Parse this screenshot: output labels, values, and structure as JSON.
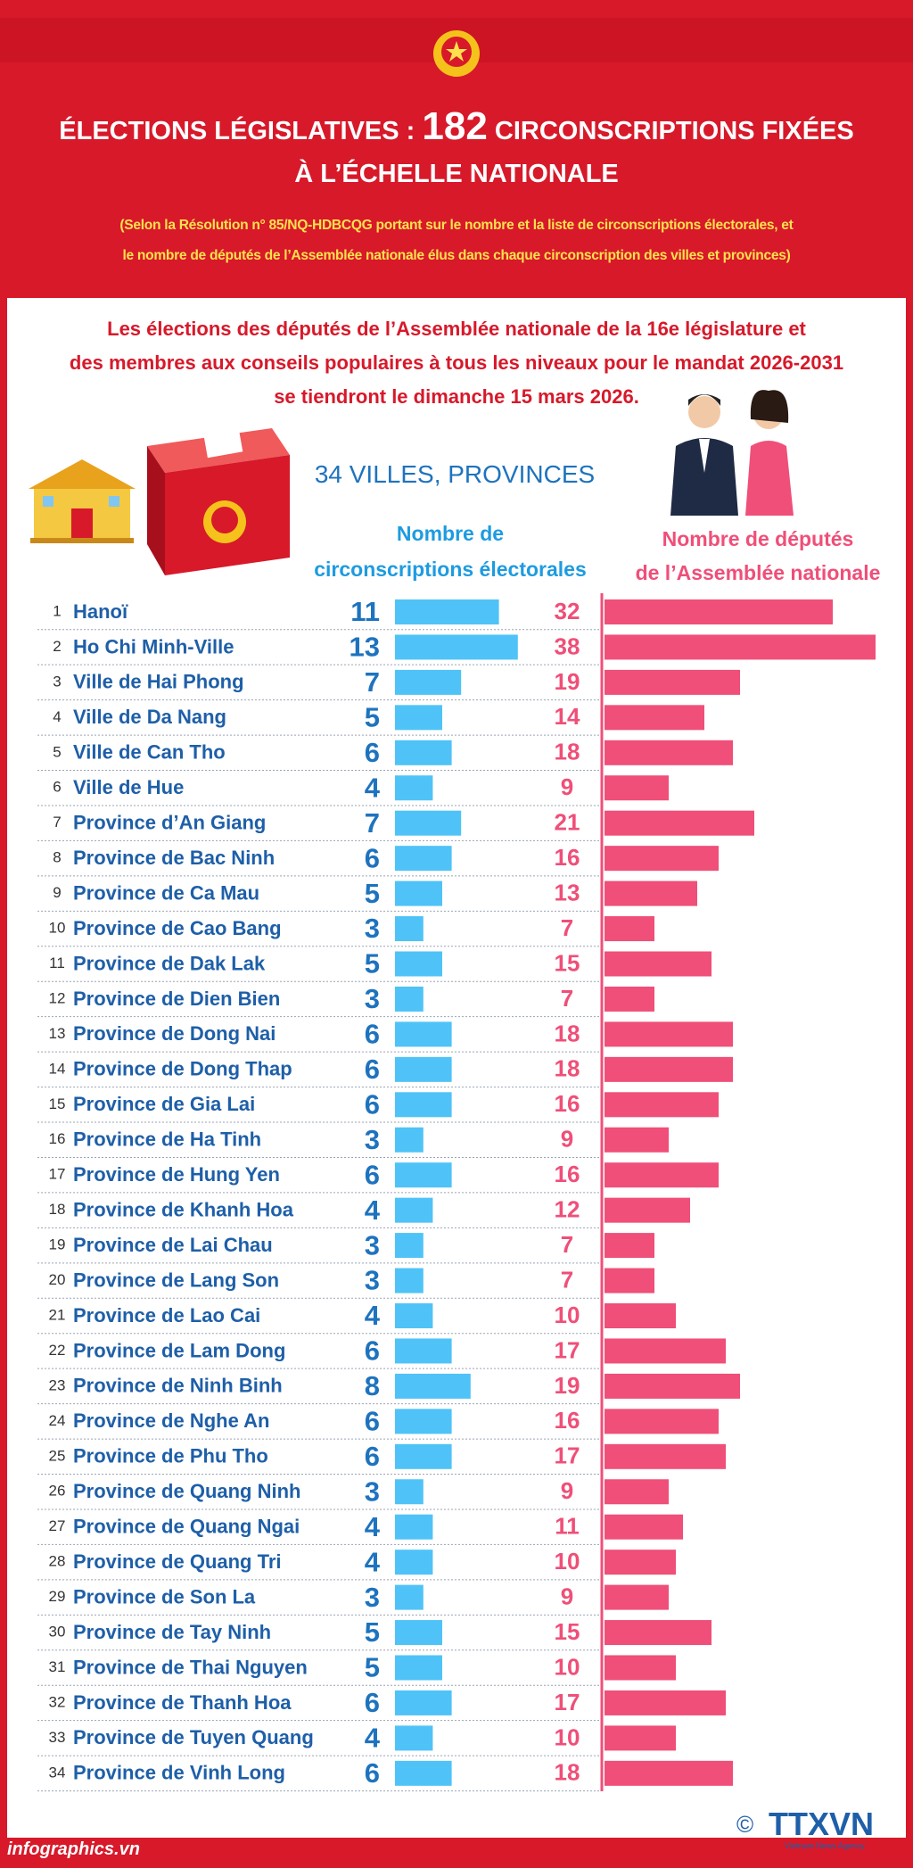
{
  "header": {
    "title_start": "ÉLECTIONS LÉGISLATIVES :",
    "title_number": 182,
    "title_end": "CIRCONSCRIPTIONS FIXÉES\nÀ L’ÉCHELLE NATIONALE",
    "subtitle": "(Selon la Résolution n° 85/NQ-HDBCQG portant sur le nombre et la liste de circonscriptions électorales, et\nle nombre de députés de l’Assemblée nationale élus dans chaque circonscription des villes et provinces)"
  },
  "intro": "Les élections des députés de l’Assemblée nationale de la 16e législature et\ndes membres aux conseils populaires à tous les niveaux pour le mandat 2026-2031\nse tiendront le dimanche 15 mars 2026.",
  "chart_data": {
    "type": "bar",
    "heading": "34 VILLES, PROVINCES",
    "ranks": [
      1,
      2,
      3,
      4,
      5,
      6,
      7,
      8,
      9,
      10,
      11,
      12,
      13,
      14,
      15,
      16,
      17,
      18,
      19,
      20,
      21,
      22,
      23,
      24,
      25,
      26,
      27,
      28,
      29,
      30,
      31,
      32,
      33,
      34
    ],
    "categories": [
      "Hanoï",
      "Ho Chi Minh-Ville",
      "Ville de Hai Phong",
      "Ville de Da Nang",
      "Ville de Can Tho",
      "Ville de Hue",
      "Province d’An Giang",
      "Province de Bac Ninh",
      "Province de Ca Mau",
      "Province de Cao Bang",
      "Province de Dak Lak",
      "Province de Dien Bien",
      "Province de Dong Nai",
      "Province de Dong Thap",
      "Province de Gia Lai",
      "Province de Ha Tinh",
      "Province de Hung Yen",
      "Province de Khanh Hoa",
      "Province de Lai Chau",
      "Province de Lang Son",
      "Province de Lao Cai",
      "Province de Lam Dong",
      "Province de Ninh Binh",
      "Province de Nghe An",
      "Province de Phu Tho",
      "Province de Quang Ninh",
      "Province de Quang Ngai",
      "Province de Quang Tri",
      "Province de Son La",
      "Province de Tay Ninh",
      "Province de Thai Nguyen",
      "Province de Thanh Hoa",
      "Province de Tuyen Quang",
      "Province de Vinh Long"
    ],
    "series": [
      {
        "name": "Nombre de\ncirconscriptions électorales",
        "color": "#4fc3f7",
        "values": [
          11,
          13,
          7,
          5,
          6,
          4,
          7,
          6,
          5,
          3,
          5,
          3,
          6,
          6,
          6,
          3,
          6,
          4,
          3,
          3,
          4,
          6,
          8,
          6,
          6,
          3,
          4,
          4,
          3,
          5,
          5,
          6,
          4,
          6
        ]
      },
      {
        "name": "Nombre de députés\nde l’Assemblée nationale",
        "color": "#ef4f78",
        "values": [
          32,
          38,
          19,
          14,
          18,
          9,
          21,
          16,
          13,
          7,
          15,
          7,
          18,
          18,
          16,
          9,
          16,
          12,
          7,
          7,
          10,
          17,
          19,
          16,
          17,
          9,
          11,
          10,
          9,
          15,
          10,
          17,
          10,
          18
        ]
      }
    ]
  },
  "footer": {
    "website": "infographics.vn",
    "copyright": "©",
    "agency": "TTXVN",
    "agency_sub": "Vietnam News Agency"
  }
}
